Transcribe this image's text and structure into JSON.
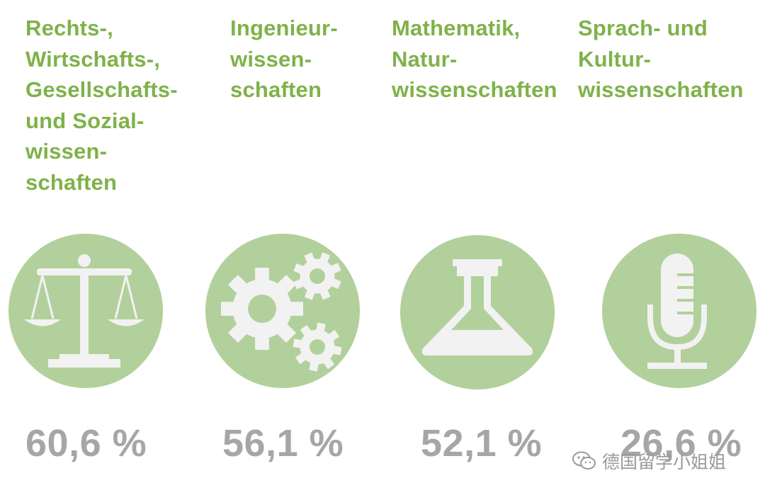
{
  "categories": [
    {
      "title_lines": [
        "Rechts-,",
        "Wirtschafts-,",
        "Gesellschafts-",
        "und Sozial-",
        "wissen-",
        "schaften"
      ],
      "icon": "scales-icon",
      "value": "60,6 %"
    },
    {
      "title_lines": [
        "Ingenieur-",
        "wissen-",
        "schaften"
      ],
      "icon": "gears-icon",
      "value": "56,1 %"
    },
    {
      "title_lines": [
        "Mathematik,",
        "Natur-",
        "wissenschaften"
      ],
      "icon": "flask-icon",
      "value": "52,1 %"
    },
    {
      "title_lines": [
        "Sprach- und",
        "Kultur-",
        "wissenschaften"
      ],
      "icon": "microphone-icon",
      "value": "26,6 %"
    }
  ],
  "watermark": {
    "text": "德国留学小姐姐",
    "icon": "wechat-icon"
  },
  "colors": {
    "title": "#7fb24a",
    "circle": "#b2d09b",
    "icon": "#f2f2f2",
    "value": "#a6a6a6"
  }
}
